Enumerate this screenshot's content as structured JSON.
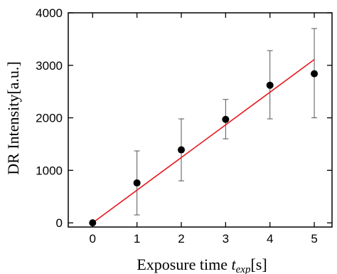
{
  "chart_data": {
    "type": "scatter",
    "xlabel": "Exposure time ",
    "xlabel_var": "t",
    "xlabel_sub": "exp",
    "xlabel_unit": "[s]",
    "ylabel": "DR Intensity[a.u.]",
    "xlim": [
      -0.55,
      5.4
    ],
    "ylim": [
      -80,
      4000
    ],
    "xticks": [
      0,
      1,
      2,
      3,
      4,
      5
    ],
    "yticks": [
      0,
      1000,
      2000,
      3000,
      4000
    ],
    "grid": false,
    "legend": "none",
    "series": [
      {
        "x": [
          0,
          1,
          2,
          3,
          4,
          5
        ],
        "y": [
          0,
          760,
          1390,
          1970,
          2620,
          2840
        ],
        "yerr_low": [
          0,
          150,
          800,
          1600,
          1980,
          2000
        ],
        "yerr_high": [
          0,
          1370,
          1980,
          2350,
          3280,
          3700
        ]
      }
    ],
    "fit_line": {
      "x": [
        0,
        5
      ],
      "y": [
        0,
        3110
      ]
    },
    "colors": {
      "points": "#000000",
      "fit": "#e8141c",
      "errorbars": "#555555"
    }
  }
}
